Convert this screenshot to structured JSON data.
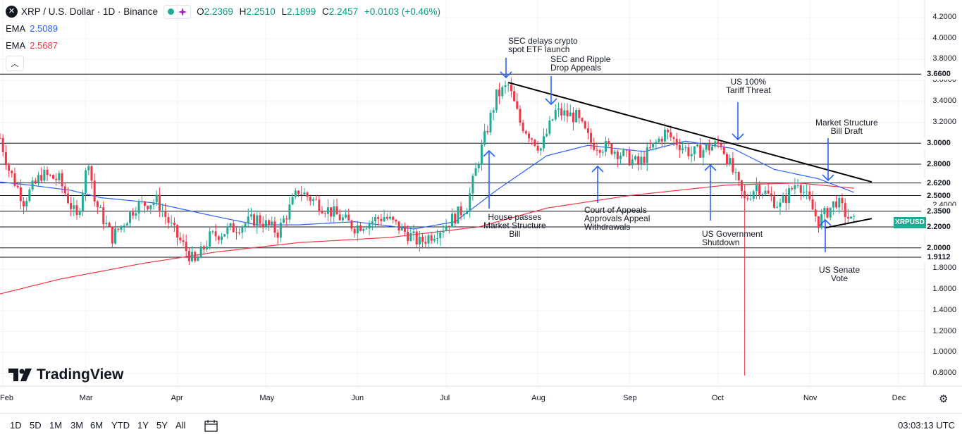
{
  "legend": {
    "symbol_icon": "xrp-logo-icon",
    "title": "XRP / U.S. Dollar · 1D · Binance",
    "ohlc": {
      "o_label": "O",
      "o": "2.2369",
      "h_label": "H",
      "h": "2.2510",
      "l_label": "L",
      "l": "2.1899",
      "c_label": "C",
      "c": "2.2457",
      "change": "+0.0103 (+0.46%)"
    },
    "ema1": {
      "label": "EMA",
      "value": "2.5089",
      "color": "#2962ff"
    },
    "ema2": {
      "label": "EMA",
      "value": "2.5687",
      "color": "#f23645"
    }
  },
  "price_tags": [
    "3.6600",
    "3.0000",
    "2.8000",
    "2.6200",
    "2.5000",
    "2.3500",
    "2.2000",
    "2.0000",
    "1.9112"
  ],
  "ticker_tag": "XRPUSD",
  "y_ticks": [
    "4.2000",
    "4.0000",
    "3.8000",
    "3.6000",
    "3.4000",
    "3.2000",
    "3.0000",
    "2.8000",
    "2.6000",
    "2.4000",
    "2.2000",
    "2.0000",
    "1.8000",
    "1.6000",
    "1.4000",
    "1.2000",
    "1.0000",
    "0.8000"
  ],
  "x_ticks": [
    "Feb",
    "Mar",
    "Apr",
    "May",
    "Jun",
    "Jul",
    "Aug",
    "Sep",
    "Oct",
    "Nov",
    "Dec"
  ],
  "annotations": {
    "sec_delays": "SEC delays crypto\nspot ETF launch",
    "sec_ripple": "SEC and Ripple\nDrop Appeals",
    "us_tariff": "US 100%\nTariff Threat",
    "market_structure": "Market Structure\nBill Draft",
    "house_passes": "House passes\nMarket Structure\nBill",
    "court_appeals": "Court of Appeals\nApprovals Appeal\nWithdrawals",
    "us_shutdown": "US Government\nShutdown",
    "us_senate": "US Senate\nVote"
  },
  "brand": "TradingView",
  "timeframes": [
    "1D",
    "5D",
    "1M",
    "3M",
    "6M",
    "YTD",
    "1Y",
    "5Y",
    "All"
  ],
  "time_utc": "03:03:13 UTC",
  "colors": {
    "up": "#22ab94",
    "down": "#f23645",
    "ema_fast": "#2962ff",
    "ema_slow": "#f23645",
    "arrows": "#2962ff"
  },
  "chart_data": {
    "type": "candlestick",
    "y_range": [
      0.7,
      4.25
    ],
    "x_range": [
      "2025-01-31",
      "2025-12-08"
    ],
    "horizontal_levels": [
      3.66,
      3.0,
      2.8,
      2.62,
      2.5,
      2.35,
      2.2,
      2.0,
      1.9112
    ],
    "close_path": [
      [
        "2025-01-31",
        3.05
      ],
      [
        "2025-02-03",
        2.75
      ],
      [
        "2025-02-08",
        2.45
      ],
      [
        "2025-02-14",
        2.7
      ],
      [
        "2025-02-20",
        2.65
      ],
      [
        "2025-02-26",
        2.28
      ],
      [
        "2025-03-02",
        2.85
      ],
      [
        "2025-03-04",
        2.45
      ],
      [
        "2025-03-10",
        2.1
      ],
      [
        "2025-03-18",
        2.4
      ],
      [
        "2025-03-25",
        2.45
      ],
      [
        "2025-03-31",
        2.15
      ],
      [
        "2025-04-07",
        1.85
      ],
      [
        "2025-04-12",
        2.1
      ],
      [
        "2025-04-21",
        2.2
      ],
      [
        "2025-04-28",
        2.28
      ],
      [
        "2025-05-05",
        2.15
      ],
      [
        "2025-05-12",
        2.55
      ],
      [
        "2025-05-20",
        2.4
      ],
      [
        "2025-05-31",
        2.2
      ],
      [
        "2025-06-10",
        2.3
      ],
      [
        "2025-06-22",
        2.05
      ],
      [
        "2025-06-30",
        2.2
      ],
      [
        "2025-07-08",
        2.4
      ],
      [
        "2025-07-12",
        2.85
      ],
      [
        "2025-07-18",
        3.45
      ],
      [
        "2025-07-22",
        3.55
      ],
      [
        "2025-07-26",
        3.2
      ],
      [
        "2025-08-02",
        2.95
      ],
      [
        "2025-08-07",
        3.3
      ],
      [
        "2025-08-14",
        3.25
      ],
      [
        "2025-08-19",
        3.0
      ],
      [
        "2025-08-26",
        2.95
      ],
      [
        "2025-09-04",
        2.8
      ],
      [
        "2025-09-13",
        3.1
      ],
      [
        "2025-09-22",
        2.9
      ],
      [
        "2025-10-02",
        3.0
      ],
      [
        "2025-10-10",
        2.45
      ],
      [
        "2025-10-14",
        2.6
      ],
      [
        "2025-10-22",
        2.4
      ],
      [
        "2025-10-28",
        2.65
      ],
      [
        "2025-11-04",
        2.25
      ],
      [
        "2025-11-10",
        2.45
      ],
      [
        "2025-11-15",
        2.25
      ],
      [
        "2025-11-16",
        2.2457
      ]
    ],
    "ema_fast": [
      [
        "2025-01-31",
        2.63
      ],
      [
        "2025-02-10",
        2.6
      ],
      [
        "2025-02-24",
        2.55
      ],
      [
        "2025-03-06",
        2.48
      ],
      [
        "2025-03-24",
        2.43
      ],
      [
        "2025-04-14",
        2.3
      ],
      [
        "2025-04-28",
        2.22
      ],
      [
        "2025-05-12",
        2.22
      ],
      [
        "2025-05-31",
        2.25
      ],
      [
        "2025-06-20",
        2.18
      ],
      [
        "2025-07-04",
        2.25
      ],
      [
        "2025-07-18",
        2.55
      ],
      [
        "2025-08-04",
        2.88
      ],
      [
        "2025-08-18",
        2.98
      ],
      [
        "2025-09-06",
        2.92
      ],
      [
        "2025-09-20",
        3.02
      ],
      [
        "2025-10-06",
        2.95
      ],
      [
        "2025-10-20",
        2.75
      ],
      [
        "2025-11-04",
        2.66
      ],
      [
        "2025-11-16",
        2.53
      ]
    ],
    "ema_slow": [
      [
        "2025-01-31",
        1.56
      ],
      [
        "2025-02-20",
        1.7
      ],
      [
        "2025-03-20",
        1.85
      ],
      [
        "2025-04-14",
        1.96
      ],
      [
        "2025-05-12",
        2.05
      ],
      [
        "2025-06-12",
        2.1
      ],
      [
        "2025-07-12",
        2.2
      ],
      [
        "2025-08-04",
        2.38
      ],
      [
        "2025-09-01",
        2.5
      ],
      [
        "2025-10-04",
        2.6
      ],
      [
        "2025-10-28",
        2.62
      ],
      [
        "2025-11-16",
        2.57
      ]
    ],
    "trendlines": [
      {
        "from": [
          "2025-07-22",
          3.58
        ],
        "to": [
          "2025-11-22",
          2.63
        ]
      },
      {
        "from": [
          "2025-11-06",
          2.19
        ],
        "to": [
          "2025-11-22",
          2.28
        ]
      }
    ],
    "wick_extremes": [
      {
        "date": "2025-10-10",
        "low": 0.78
      }
    ]
  }
}
